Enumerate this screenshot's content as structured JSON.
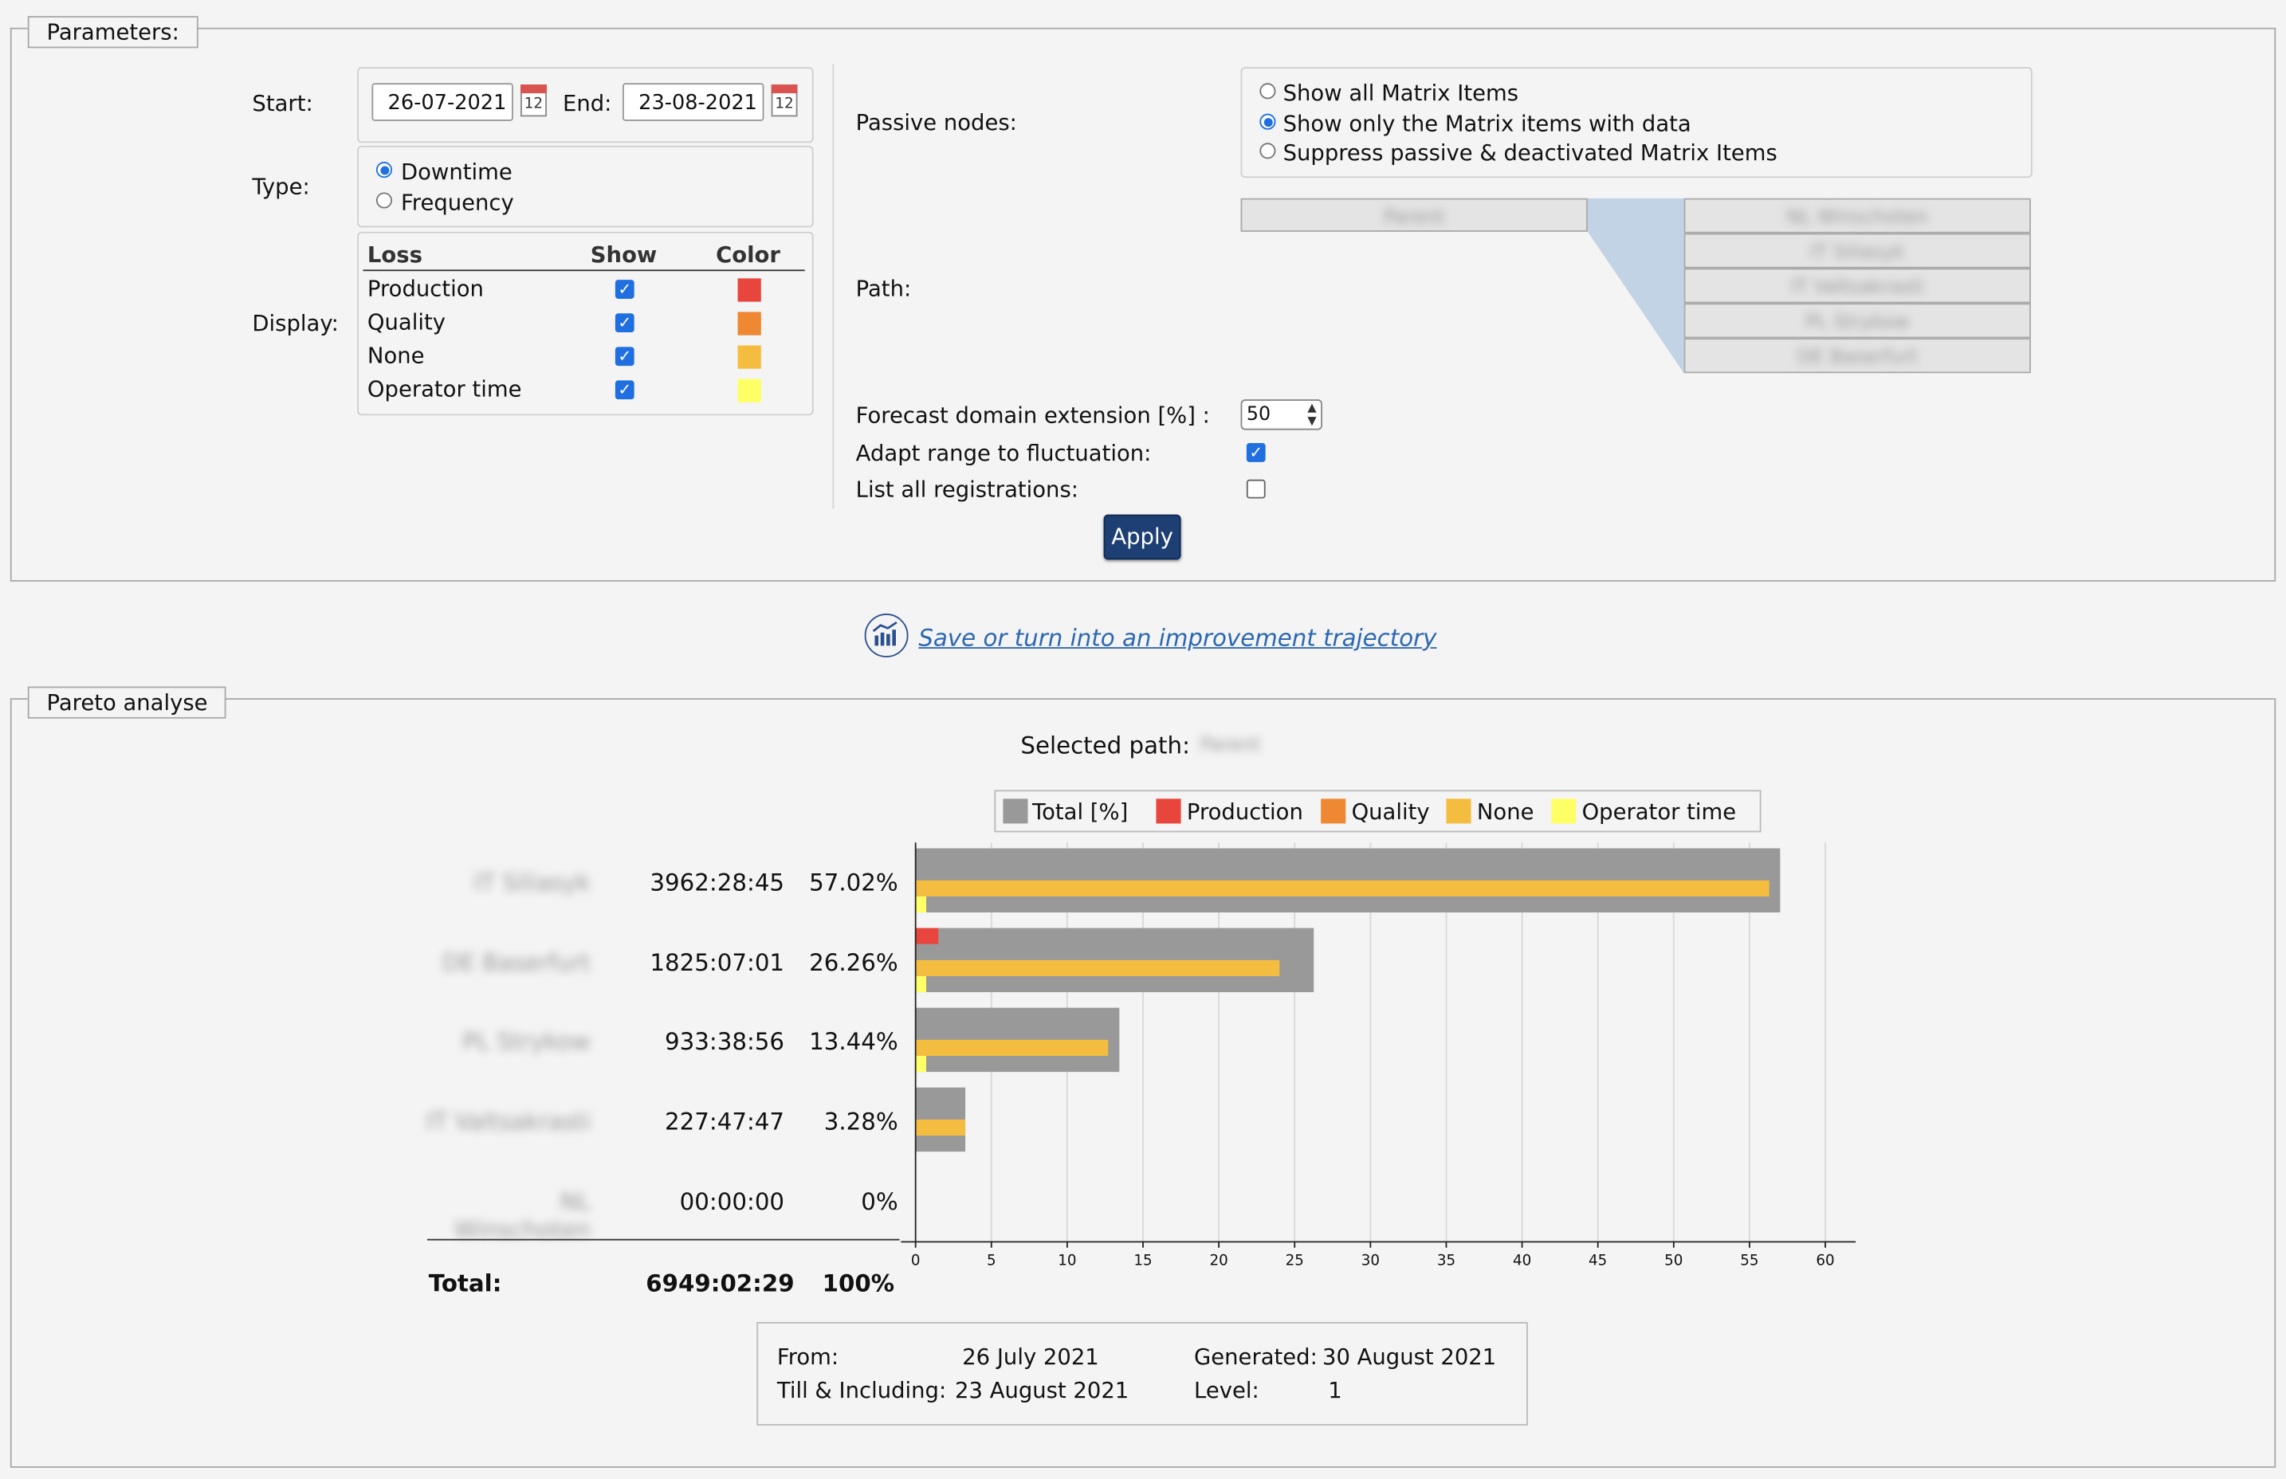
{
  "params": {
    "legend": "Parameters:",
    "start_label": "Start:",
    "start_value": "26-07-2021",
    "end_label": "End:",
    "end_value": "23-08-2021",
    "calendar_day": "12",
    "type_label": "Type:",
    "type_options": [
      "Downtime",
      "Frequency"
    ],
    "type_selected": 0,
    "display_label": "Display:",
    "loss_header": "Loss",
    "show_header": "Show",
    "color_header": "Color",
    "loss_items": [
      {
        "name": "Production",
        "show": true,
        "color": "#e8453c"
      },
      {
        "name": "Quality",
        "show": true,
        "color": "#ee8833"
      },
      {
        "name": "None",
        "show": true,
        "color": "#f4bd40"
      },
      {
        "name": "Operator time",
        "show": true,
        "color": "#ffff66"
      }
    ],
    "passive_label": "Passive nodes:",
    "passive_options": [
      "Show all Matrix Items",
      "Show only the Matrix items with data",
      "Suppress passive & deactivated Matrix Items"
    ],
    "passive_selected": 1,
    "path_label": "Path:",
    "path_root": "Parent",
    "path_children": [
      "NL Winschoten",
      "IT Siliasyk",
      "IT Valtsakrasti",
      "PL Strykow",
      "DE Baserfurt"
    ],
    "forecast_label": "Forecast domain extension [%] :",
    "forecast_value": "50",
    "adapt_label": "Adapt range to fluctuation:",
    "adapt_checked": true,
    "list_label": "List all registrations:",
    "list_checked": false,
    "apply_label": "Apply"
  },
  "trajectory_link": "Save or turn into an improvement trajectory",
  "pareto": {
    "legend": "Pareto analyse",
    "selected_path_label": "Selected path:",
    "selected_path_value": "Parent",
    "total_label": "Total:",
    "total_time": "6949:02:29",
    "total_percent": "100%",
    "from_label": "From:",
    "from_value": "26 July 2021",
    "till_label": "Till & Including:",
    "till_value": "23 August 2021",
    "generated_label": "Generated:",
    "generated_value": "30 August 2021",
    "level_label": "Level:",
    "level_value": "1"
  },
  "chart_data": {
    "type": "bar",
    "orientation": "horizontal",
    "legend": [
      "Total [%]",
      "Production",
      "Quality",
      "None",
      "Operator time"
    ],
    "colors": {
      "Total [%]": "#999999",
      "Production": "#e8453c",
      "Quality": "#ee8833",
      "None": "#f4bd40",
      "Operator time": "#ffff66"
    },
    "categories": [
      "IT Siliasyk",
      "DE Baserfurt",
      "PL Strykow",
      "IT Valtsakrasti",
      "NL Winschoten"
    ],
    "times": [
      "3962:28:45",
      "1825:07:01",
      "933:38:56",
      "227:47:47",
      "00:00:00"
    ],
    "percents": [
      "57.02%",
      "26.26%",
      "13.44%",
      "3.28%",
      "0%"
    ],
    "series": [
      {
        "name": "Total [%]",
        "values": [
          57.02,
          26.26,
          13.44,
          3.28,
          0
        ]
      },
      {
        "name": "Production",
        "values": [
          0,
          1.5,
          0,
          0,
          0
        ]
      },
      {
        "name": "Quality",
        "values": [
          0,
          0,
          0,
          0,
          0
        ]
      },
      {
        "name": "None",
        "values": [
          56.3,
          24.0,
          12.7,
          3.28,
          0
        ]
      },
      {
        "name": "Operator time",
        "values": [
          0.7,
          0.7,
          0.7,
          0,
          0
        ]
      }
    ],
    "xlim": [
      0,
      60
    ],
    "xticks": [
      0,
      5,
      10,
      15,
      20,
      25,
      30,
      35,
      40,
      45,
      50,
      55,
      60
    ],
    "grid": true
  }
}
